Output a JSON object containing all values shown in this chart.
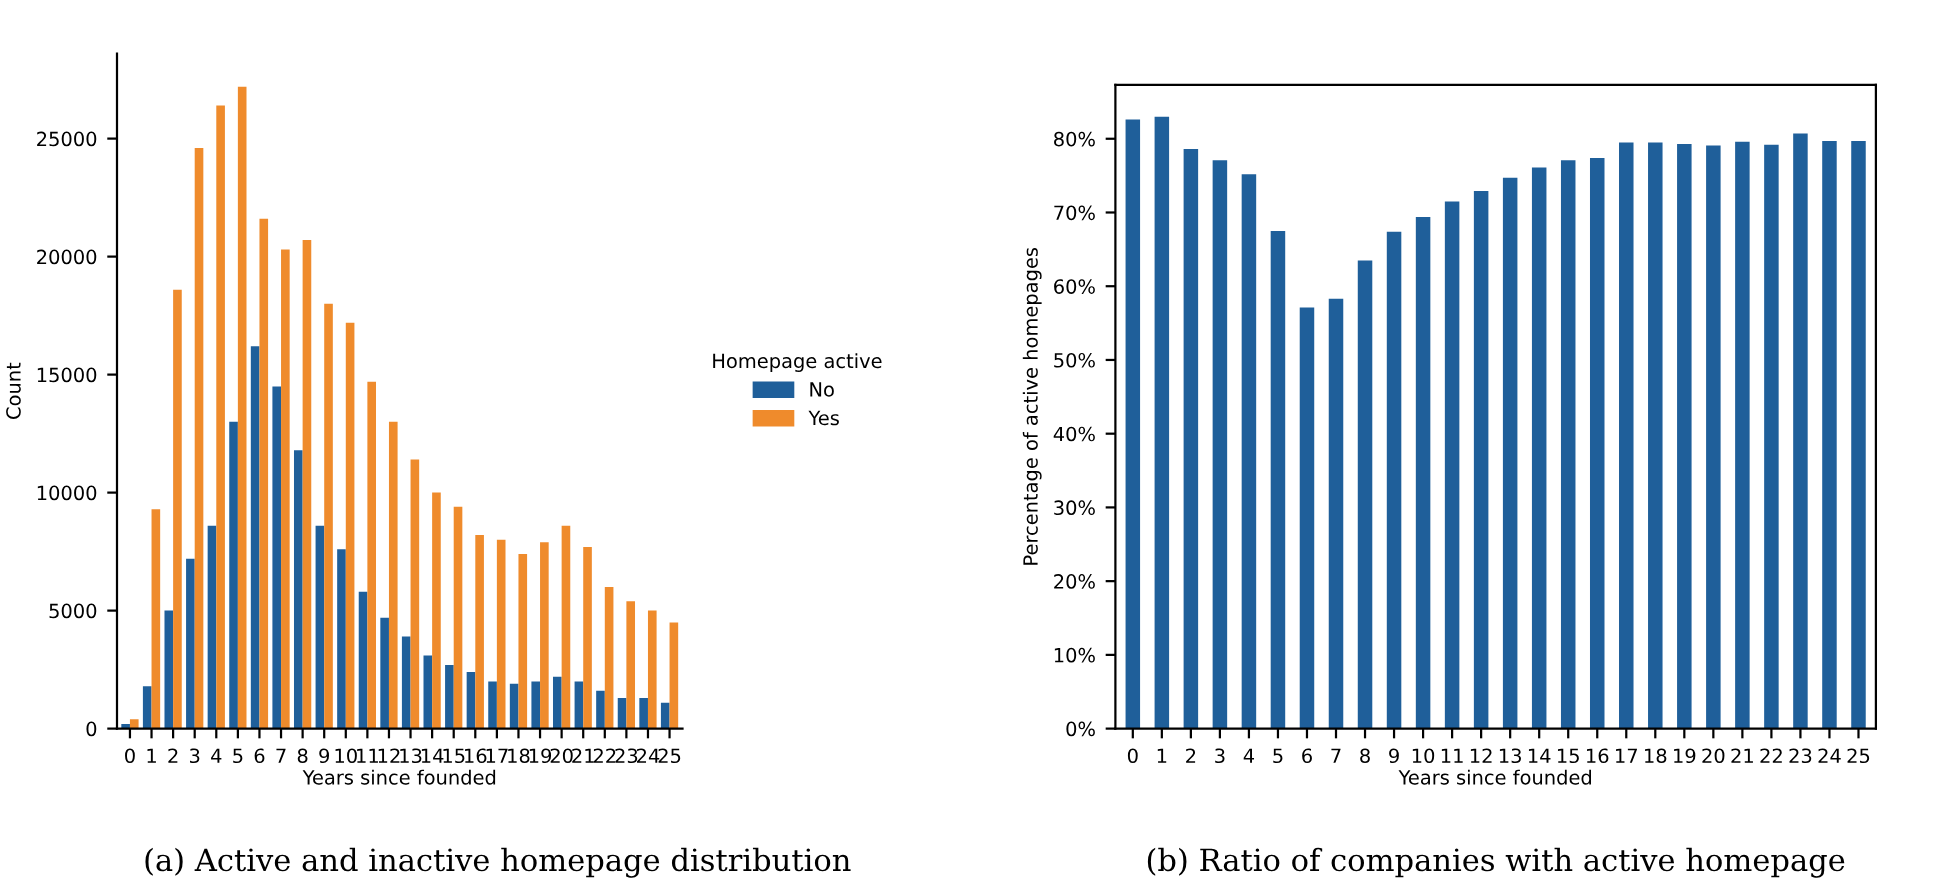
{
  "chart_data": [
    {
      "type": "bar",
      "xlabel": "Years since founded",
      "ylabel": "Count",
      "legend_title": "Homepage active",
      "legend": "right",
      "categories": [
        "0",
        "1",
        "2",
        "3",
        "4",
        "5",
        "6",
        "7",
        "8",
        "9",
        "10",
        "11",
        "12",
        "13",
        "14",
        "15",
        "16",
        "17",
        "18",
        "19",
        "20",
        "21",
        "22",
        "23",
        "24",
        "25"
      ],
      "series": [
        {
          "name": "No",
          "color": "#1f5f9a",
          "values": [
            200,
            1800,
            5000,
            7200,
            8600,
            13000,
            16200,
            14500,
            11800,
            8600,
            7600,
            5800,
            4700,
            3900,
            3100,
            2700,
            2400,
            2000,
            1900,
            2000,
            2200,
            2000,
            1600,
            1300,
            1300,
            1100
          ]
        },
        {
          "name": "Yes",
          "color": "#ef8b2c",
          "values": [
            400,
            9300,
            18600,
            24600,
            26400,
            27200,
            21600,
            20300,
            20700,
            18000,
            17200,
            14700,
            13000,
            11400,
            10000,
            9400,
            8200,
            8000,
            7400,
            7900,
            8600,
            7700,
            6000,
            5400,
            5000,
            4500
          ]
        }
      ],
      "ylim": [
        0,
        28600
      ],
      "yticks": [
        0,
        5000,
        10000,
        15000,
        20000,
        25000
      ],
      "grid": false,
      "annotations": [
        "(a) Active and inactive homepage distribution"
      ]
    },
    {
      "type": "bar",
      "xlabel": "Years since founded",
      "ylabel": "Percentage of active homepages",
      "categories": [
        "0",
        "1",
        "2",
        "3",
        "4",
        "5",
        "6",
        "7",
        "8",
        "9",
        "10",
        "11",
        "12",
        "13",
        "14",
        "15",
        "16",
        "17",
        "18",
        "19",
        "20",
        "21",
        "22",
        "23",
        "24",
        "25"
      ],
      "values": [
        82.6,
        83.0,
        78.6,
        77.1,
        75.2,
        67.5,
        57.1,
        58.3,
        63.5,
        67.4,
        69.4,
        71.5,
        72.9,
        74.7,
        76.1,
        77.1,
        77.4,
        79.5,
        79.5,
        79.3,
        79.1,
        79.6,
        79.2,
        80.7,
        79.7,
        79.7
      ],
      "color": "#1f5f9a",
      "ylim": [
        0,
        87.3
      ],
      "yticks": [
        {
          "value": 0,
          "label": "0%"
        },
        {
          "value": 10,
          "label": "10%"
        },
        {
          "value": 20,
          "label": "20%"
        },
        {
          "value": 30,
          "label": "30%"
        },
        {
          "value": 40,
          "label": "40%"
        },
        {
          "value": 50,
          "label": "50%"
        },
        {
          "value": 60,
          "label": "60%"
        },
        {
          "value": 70,
          "label": "70%"
        },
        {
          "value": 80,
          "label": "80%"
        }
      ],
      "grid": false,
      "annotations": [
        "(b) Ratio of companies with active homepage"
      ]
    }
  ]
}
